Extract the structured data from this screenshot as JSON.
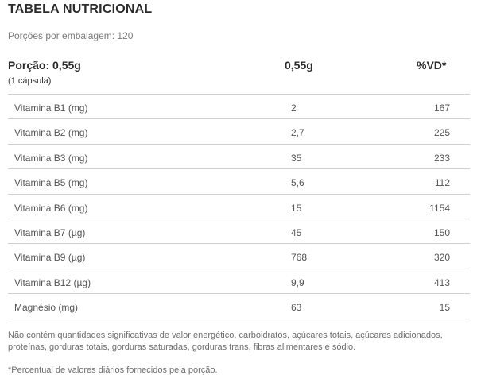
{
  "title": "TABELA NUTRICIONAL",
  "servings_per_package": "Porções por embalagem: 120",
  "header": {
    "portion": "Porção: 0,55g",
    "portion_sub": "(1 cápsula)",
    "quantity": "0,55g",
    "vd": "%VD*"
  },
  "rows": [
    {
      "name": "Vitamina B1 (mg)",
      "qty": "2",
      "vd": "167"
    },
    {
      "name": "Vitamina B2 (mg)",
      "qty": "2,7",
      "vd": "225"
    },
    {
      "name": "Vitamina B3 (mg)",
      "qty": "35",
      "vd": "233"
    },
    {
      "name": "Vitamina B5 (mg)",
      "qty": "5,6",
      "vd": "112"
    },
    {
      "name": "Vitamina B6 (mg)",
      "qty": "15",
      "vd": "1154"
    },
    {
      "name": "Vitamina B7 (µg)",
      "qty": "45",
      "vd": "150"
    },
    {
      "name": "Vitamina B9 (µg)",
      "qty": "768",
      "vd": "320"
    },
    {
      "name": "Vitamina B12 (µg)",
      "qty": "9,9",
      "vd": "413"
    },
    {
      "name": "Magnésio (mg)",
      "qty": "63",
      "vd": "15"
    }
  ],
  "note": "Não contém quantidades significativas de valor energético, carboidratos, açúcares totais, açúcares adicionados, proteínas, gorduras totais, gorduras saturadas, gorduras trans, fibras alimentares e sódio.",
  "footnote": "*Percentual de valores diários fornecidos pela porção."
}
